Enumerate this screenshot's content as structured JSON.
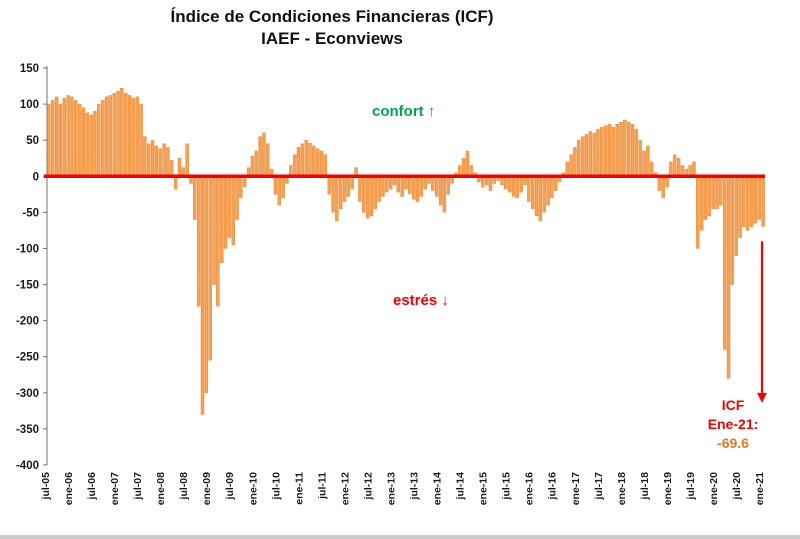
{
  "title": {
    "line1": "Índice de Condiciones Financieras (ICF)",
    "line2": "IAEF - Econviews"
  },
  "annotations": {
    "comfort": {
      "text": "confort",
      "arrow": "↑",
      "color": "#00A650"
    },
    "stress": {
      "text": "estrés",
      "arrow": "↓",
      "color": "#F40000"
    },
    "icf_callout": {
      "line1": "ICF",
      "line2": "Ene-21:",
      "value": "-69.6",
      "label_color": "#F40000",
      "value_color": "#E87722"
    }
  },
  "chart_data": {
    "type": "bar",
    "title": "Índice de Condiciones Financieras (ICF) IAEF - Econviews",
    "frequency": "monthly",
    "start": "jul-05",
    "end": "ene-21",
    "x_tick_labels": [
      "jul-05",
      "ene-06",
      "jul-06",
      "ene-07",
      "jul-07",
      "ene-08",
      "jul-08",
      "ene-09",
      "jul-09",
      "ene-10",
      "jul-10",
      "ene-11",
      "jul-11",
      "ene-12",
      "jul-12",
      "ene-13",
      "jul-13",
      "ene-14",
      "jul-14",
      "ene-15",
      "jul-15",
      "ene-16",
      "jul-16",
      "ene-17",
      "jul-17",
      "ene-18",
      "jul-18",
      "ene-19",
      "jul-19",
      "ene-20",
      "jul-20",
      "ene-21"
    ],
    "x_tick_every_n_months": 6,
    "y_ticks": [
      150,
      100,
      50,
      0,
      -50,
      -100,
      -150,
      -200,
      -250,
      -300,
      -350,
      -400
    ],
    "ylim": [
      -400,
      150
    ],
    "grid": false,
    "bar_color": "#F6A051",
    "bar_border_color": "#E07E2E",
    "zero_line_color": "#F40000",
    "values": [
      100,
      105,
      110,
      100,
      108,
      112,
      110,
      105,
      100,
      95,
      88,
      85,
      90,
      100,
      105,
      110,
      112,
      115,
      118,
      122,
      115,
      112,
      108,
      110,
      100,
      55,
      45,
      50,
      42,
      38,
      45,
      40,
      22,
      -18,
      25,
      12,
      45,
      -10,
      -60,
      -180,
      -330,
      -300,
      -255,
      -150,
      -180,
      -120,
      -100,
      -85,
      -95,
      -60,
      -30,
      -15,
      12,
      28,
      35,
      55,
      60,
      45,
      10,
      -25,
      -40,
      -30,
      -10,
      15,
      30,
      40,
      45,
      50,
      46,
      42,
      38,
      35,
      30,
      -25,
      -50,
      -62,
      -45,
      -35,
      -28,
      -18,
      12,
      -35,
      -50,
      -58,
      -55,
      -45,
      -35,
      -28,
      -22,
      -18,
      -12,
      -22,
      -28,
      -18,
      -24,
      -32,
      -35,
      -28,
      -18,
      -10,
      -20,
      -28,
      -40,
      -50,
      -25,
      -10,
      5,
      15,
      25,
      35,
      15,
      5,
      -8,
      -15,
      -12,
      -20,
      -10,
      -6,
      -12,
      -18,
      -22,
      -28,
      -30,
      -22,
      -12,
      -35,
      -45,
      -55,
      -62,
      -50,
      -40,
      -30,
      -20,
      -8,
      5,
      20,
      30,
      40,
      50,
      55,
      58,
      62,
      60,
      65,
      68,
      70,
      72,
      68,
      72,
      75,
      78,
      75,
      72,
      65,
      50,
      35,
      42,
      20,
      5,
      -20,
      -30,
      -15,
      20,
      30,
      25,
      15,
      10,
      15,
      20,
      -100,
      -75,
      -60,
      -55,
      -45,
      -45,
      -40,
      -240,
      -280,
      -150,
      -110,
      -85,
      -70,
      -75,
      -70,
      -65,
      -60,
      -69.6
    ],
    "last_point": {
      "label": "ene-21",
      "value": -69.6
    },
    "legend": "none"
  }
}
